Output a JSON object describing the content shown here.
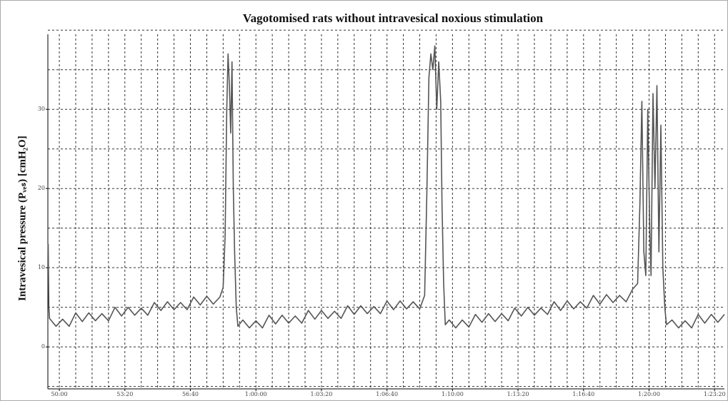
{
  "chart_data": {
    "type": "line",
    "title": "Vagotomised rats without intravesical noxious stimulation",
    "y_label": "Intravesical pressure (Pᵥₑₛ) [cmH₂O]",
    "color": "#555555",
    "xlim": [
      2965,
      5030
    ],
    "ylim": [
      -5.3,
      40.2
    ],
    "xticks": [
      {
        "value": 3000,
        "label": "50:00"
      },
      {
        "value": 3200,
        "label": "53:20"
      },
      {
        "value": 3400,
        "label": "56:40"
      },
      {
        "value": 3600,
        "label": "1:00:00"
      },
      {
        "value": 3800,
        "label": "1:03:20"
      },
      {
        "value": 4000,
        "label": "1:06:40"
      },
      {
        "value": 4200,
        "label": "1:10:00"
      },
      {
        "value": 4400,
        "label": "1:13:20"
      },
      {
        "value": 4600,
        "label": "1:16:40"
      },
      {
        "value": 4800,
        "label": "1:20:00"
      },
      {
        "value": 5000,
        "label": "1:23:20"
      }
    ],
    "yticks": [
      0,
      10,
      20,
      30
    ],
    "xgrid": [
      3000,
      3050,
      3100,
      3150,
      3200,
      3250,
      3300,
      3350,
      3400,
      3450,
      3500,
      3550,
      3600,
      3650,
      3700,
      3750,
      3800,
      3850,
      3900,
      3950,
      4000,
      4050,
      4100,
      4150,
      4200,
      4250,
      4300,
      4350,
      4400,
      4450,
      4500,
      4550,
      4600,
      4650,
      4700,
      4750,
      4800,
      4850,
      4900,
      4950,
      5000
    ],
    "ygrid": [
      -5,
      0,
      5,
      10,
      15,
      20,
      25,
      30,
      35,
      40
    ],
    "grid": true,
    "x": [
      2966,
      2968,
      2970,
      2990,
      3010,
      3030,
      3050,
      3070,
      3090,
      3110,
      3130,
      3150,
      3170,
      3190,
      3210,
      3230,
      3250,
      3270,
      3290,
      3310,
      3330,
      3350,
      3370,
      3390,
      3410,
      3430,
      3450,
      3470,
      3490,
      3500,
      3506,
      3511,
      3515,
      3519,
      3523,
      3527,
      3531,
      3535,
      3540,
      3545,
      3560,
      3580,
      3600,
      3620,
      3640,
      3660,
      3680,
      3700,
      3720,
      3740,
      3760,
      3780,
      3800,
      3820,
      3840,
      3860,
      3880,
      3900,
      3920,
      3940,
      3960,
      3980,
      4000,
      4020,
      4040,
      4060,
      4080,
      4100,
      4115,
      4122,
      4128,
      4134,
      4140,
      4146,
      4152,
      4158,
      4164,
      4168,
      4173,
      4178,
      4190,
      4210,
      4230,
      4250,
      4270,
      4290,
      4310,
      4330,
      4350,
      4370,
      4390,
      4410,
      4430,
      4450,
      4470,
      4490,
      4510,
      4530,
      4550,
      4570,
      4590,
      4610,
      4630,
      4650,
      4670,
      4690,
      4710,
      4730,
      4750,
      4765,
      4772,
      4778,
      4784,
      4790,
      4796,
      4802,
      4806,
      4812,
      4818,
      4824,
      4830,
      4836,
      4842,
      4848,
      4853,
      4870,
      4890,
      4910,
      4930,
      4950,
      4970,
      4990,
      5010,
      5030
    ],
    "values": [
      13,
      5,
      3.6,
      2.6,
      3.5,
      2.6,
      4.3,
      3.2,
      4.3,
      3.3,
      4.2,
      3.3,
      5.0,
      3.9,
      5.0,
      4.0,
      4.9,
      4.0,
      5.6,
      4.6,
      5.7,
      4.7,
      5.6,
      4.7,
      6.3,
      5.3,
      6.4,
      5.4,
      6.3,
      7.5,
      14,
      30,
      37,
      33,
      27,
      36,
      20,
      12,
      5,
      2.6,
      3.4,
      2.4,
      3.3,
      2.4,
      4.0,
      2.9,
      4.0,
      3.0,
      3.9,
      3.0,
      4.6,
      3.5,
      4.6,
      3.6,
      4.5,
      3.6,
      5.2,
      4.1,
      5.2,
      4.2,
      5.1,
      4.2,
      5.8,
      4.7,
      5.8,
      4.8,
      5.7,
      4.8,
      6.5,
      20,
      34,
      37,
      35,
      38,
      30,
      36,
      31,
      18,
      8,
      2.8,
      3.4,
      2.4,
      3.4,
      2.5,
      4.1,
      3.1,
      4.2,
      3.2,
      4.2,
      3.3,
      4.9,
      3.9,
      5.0,
      4.0,
      4.9,
      4.1,
      5.7,
      4.6,
      5.8,
      4.8,
      5.7,
      4.9,
      6.5,
      5.4,
      6.6,
      5.6,
      6.5,
      5.7,
      7.3,
      8,
      18,
      31,
      12,
      9,
      30,
      15,
      9,
      32,
      20,
      33,
      12,
      28,
      10,
      5,
      2.8,
      3.4,
      2.4,
      3.3,
      2.4,
      4.1,
      3.0,
      4.1,
      3.1,
      4.1
    ]
  }
}
